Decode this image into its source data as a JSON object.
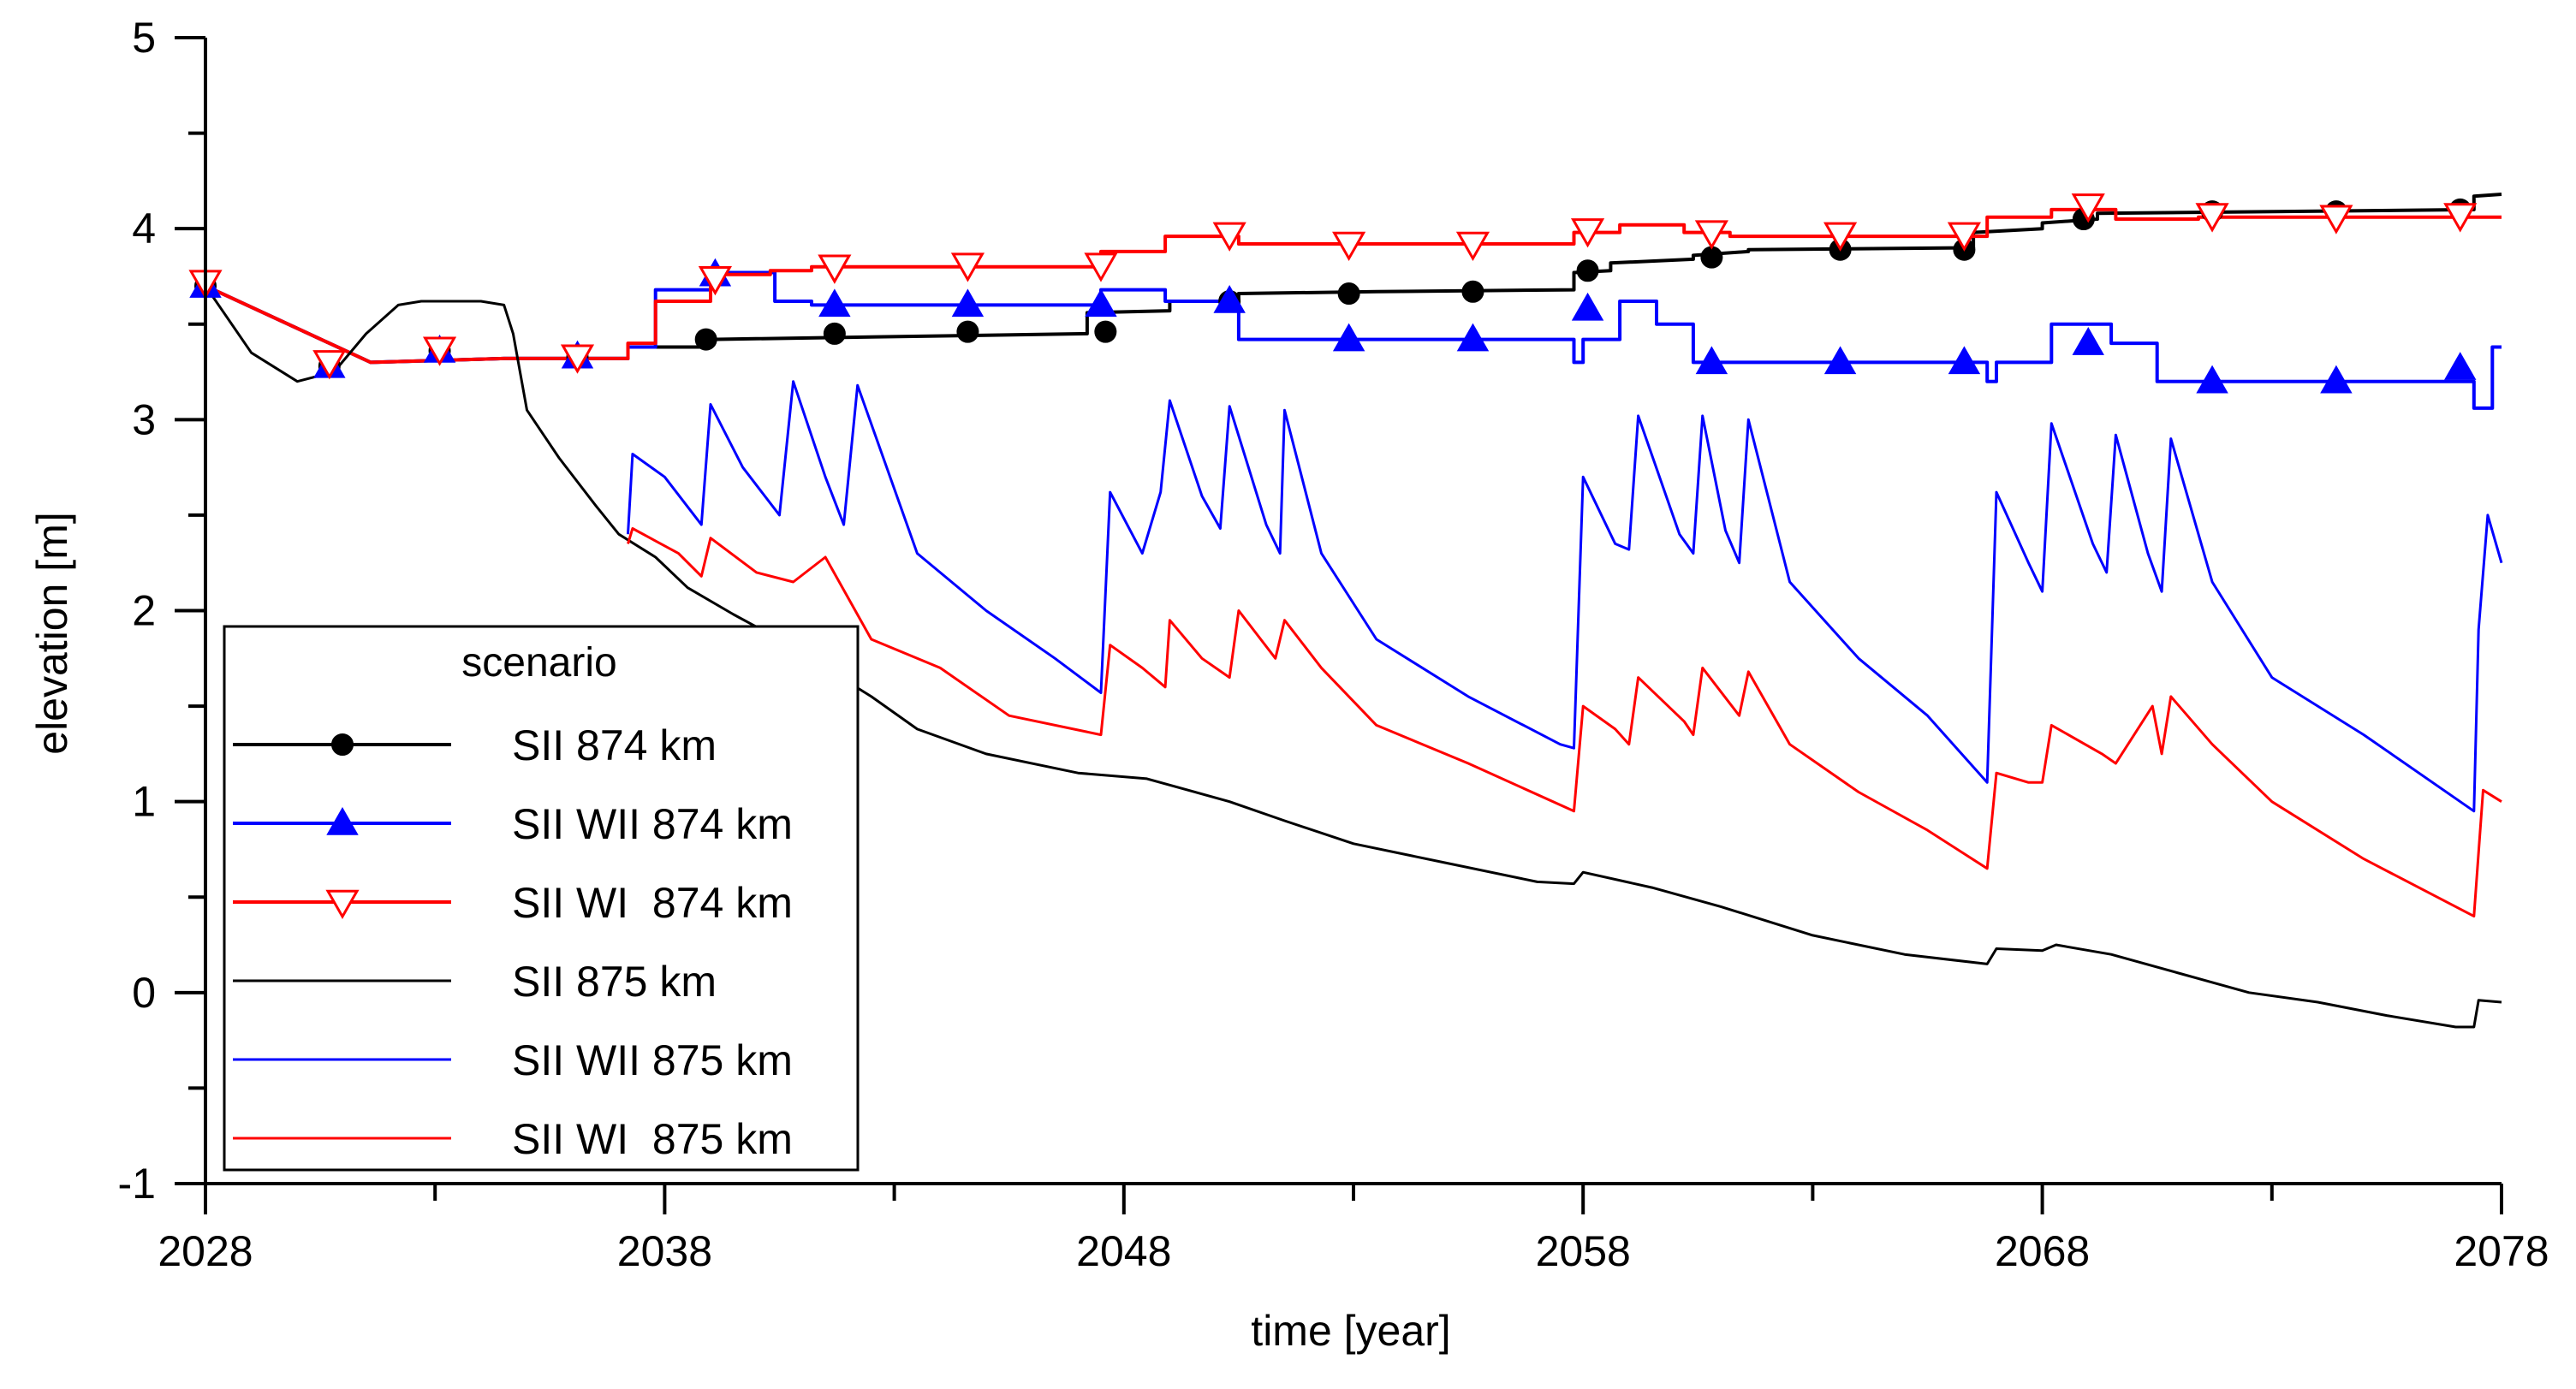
{
  "chart_data": {
    "type": "line",
    "title": "",
    "xlabel": "time [year]",
    "ylabel": "elevation [m]",
    "xlim": [
      2028,
      2078
    ],
    "ylim": [
      -1,
      5
    ],
    "xticks": [
      2028,
      2038,
      2048,
      2058,
      2068,
      2078
    ],
    "yticks": [
      -1,
      0,
      1,
      2,
      3,
      4,
      5
    ],
    "grid": false,
    "legend": {
      "title": "scenario",
      "position": "bottom-left"
    },
    "series": [
      {
        "name": "SII 874 km",
        "color": "#000000",
        "marker": "circle",
        "x": [
          2028,
          2031.6,
          2034.5,
          2034.5,
          2037.2,
          2037.2,
          2039,
          2039,
          2047.2,
          2047.2,
          2049,
          2049,
          2050.5,
          2050.5,
          2053.5,
          2053.5,
          2057.8,
          2057.8,
          2058.6,
          2058.6,
          2060.4,
          2060.4,
          2061.6,
          2061.6,
          2066.5,
          2066.5,
          2068,
          2068,
          2069.2,
          2069.2,
          2077.4,
          2077.4,
          2078
        ],
        "y": [
          3.7,
          3.3,
          3.32,
          3.32,
          3.32,
          3.38,
          3.38,
          3.42,
          3.45,
          3.56,
          3.57,
          3.62,
          3.62,
          3.66,
          3.67,
          3.67,
          3.68,
          3.77,
          3.78,
          3.82,
          3.84,
          3.86,
          3.88,
          3.89,
          3.9,
          3.98,
          4.0,
          4.03,
          4.05,
          4.08,
          4.1,
          4.17,
          4.18
        ],
        "markers_x": [
          2028,
          2030.7,
          2033.1,
          2036.1,
          2038.9,
          2041.7,
          2044.6,
          2047.6,
          2050.3,
          2052.9,
          2055.6,
          2058.1,
          2060.8,
          2063.6,
          2066.3,
          2068.9,
          2071.7,
          2074.4,
          2077.1
        ],
        "markers_y": [
          3.7,
          3.28,
          3.36,
          3.33,
          3.42,
          3.45,
          3.46,
          3.46,
          3.62,
          3.66,
          3.67,
          3.78,
          3.85,
          3.89,
          3.89,
          4.05,
          4.09,
          4.09,
          4.1
        ]
      },
      {
        "name": "SII WII 874 km",
        "color": "#0000ff",
        "marker": "triangle-up",
        "x": [
          2028,
          2031.6,
          2034.5,
          2037.2,
          2037.2,
          2037.8,
          2037.8,
          2039,
          2039,
          2040.4,
          2040.4,
          2041.2,
          2041.2,
          2047.5,
          2047.5,
          2048.9,
          2048.9,
          2050.5,
          2050.5,
          2057.8,
          2057.8,
          2058,
          2058,
          2058.8,
          2058.8,
          2059.6,
          2059.6,
          2060.4,
          2060.4,
          2061.2,
          2061.2,
          2066.8,
          2066.8,
          2067,
          2067,
          2068.2,
          2068.2,
          2069.5,
          2069.5,
          2070.5,
          2070.5,
          2077.4,
          2077.4,
          2077.8,
          2077.8,
          2078
        ],
        "y": [
          3.7,
          3.3,
          3.32,
          3.32,
          3.38,
          3.38,
          3.68,
          3.68,
          3.77,
          3.77,
          3.62,
          3.62,
          3.6,
          3.6,
          3.68,
          3.68,
          3.62,
          3.62,
          3.42,
          3.42,
          3.3,
          3.3,
          3.42,
          3.42,
          3.62,
          3.62,
          3.5,
          3.5,
          3.3,
          3.3,
          3.3,
          3.3,
          3.2,
          3.2,
          3.3,
          3.3,
          3.5,
          3.5,
          3.4,
          3.4,
          3.2,
          3.2,
          3.06,
          3.06,
          3.38,
          3.38
        ],
        "markers_x": [
          2028,
          2030.7,
          2033.1,
          2036.1,
          2039.1,
          2041.7,
          2044.6,
          2047.5,
          2050.3,
          2052.9,
          2055.6,
          2058.1,
          2060.8,
          2063.6,
          2066.3,
          2069,
          2071.7,
          2074.4,
          2077.1
        ],
        "markers_y": [
          3.7,
          3.28,
          3.36,
          3.33,
          3.76,
          3.6,
          3.6,
          3.6,
          3.62,
          3.42,
          3.42,
          3.58,
          3.3,
          3.3,
          3.3,
          3.4,
          3.2,
          3.2,
          3.27
        ]
      },
      {
        "name": "SII WI  874 km",
        "color": "#ff0000",
        "marker": "triangle-down-open",
        "x": [
          2028,
          2031.6,
          2034.5,
          2037.2,
          2037.2,
          2037.8,
          2037.8,
          2039,
          2039,
          2040.3,
          2040.3,
          2041.2,
          2041.2,
          2047.5,
          2047.5,
          2048.9,
          2048.9,
          2050.5,
          2050.5,
          2051,
          2051,
          2057.8,
          2057.8,
          2058.8,
          2058.8,
          2060.2,
          2060.2,
          2061.2,
          2061.2,
          2066.8,
          2066.8,
          2068.2,
          2068.2,
          2069.6,
          2069.6,
          2071.4,
          2071.4,
          2078
        ],
        "y": [
          3.7,
          3.3,
          3.32,
          3.32,
          3.4,
          3.4,
          3.62,
          3.62,
          3.76,
          3.76,
          3.78,
          3.78,
          3.8,
          3.8,
          3.88,
          3.88,
          3.96,
          3.96,
          3.92,
          3.92,
          3.92,
          3.92,
          3.98,
          3.98,
          4.02,
          4.02,
          3.98,
          3.98,
          3.96,
          3.96,
          4.06,
          4.06,
          4.1,
          4.1,
          4.05,
          4.05,
          4.06,
          4.06
        ],
        "markers_x": [
          2028,
          2030.7,
          2033.1,
          2036.1,
          2039.1,
          2041.7,
          2044.6,
          2047.5,
          2050.3,
          2052.9,
          2055.6,
          2058.1,
          2060.8,
          2063.6,
          2066.3,
          2069,
          2071.7,
          2074.4,
          2077.1
        ],
        "markers_y": [
          3.72,
          3.3,
          3.37,
          3.33,
          3.74,
          3.8,
          3.81,
          3.81,
          3.97,
          3.92,
          3.92,
          3.99,
          3.98,
          3.97,
          3.97,
          4.12,
          4.07,
          4.06,
          4.07
        ]
      },
      {
        "name": "SII 875 km",
        "color": "#000000",
        "marker": "none",
        "x": [
          2028,
          2029,
          2030,
          2030.8,
          2031.5,
          2032.2,
          2032.7,
          2033.3,
          2034,
          2034.5,
          2034.7,
          2035,
          2035.7,
          2036.5,
          2037,
          2037.8,
          2038.5,
          2039.5,
          2040.5,
          2041.5,
          2042.5,
          2043.5,
          2045,
          2047,
          2048.5,
          2050.3,
          2051.5,
          2053,
          2055,
          2057,
          2057.8,
          2058,
          2059.5,
          2061,
          2063,
          2065,
          2066.8,
          2067,
          2068,
          2068.3,
          2069.5,
          2071,
          2072.5,
          2074,
          2075.5,
          2077,
          2077.4,
          2077.5,
          2078
        ],
        "y": [
          3.7,
          3.35,
          3.2,
          3.25,
          3.45,
          3.6,
          3.62,
          3.62,
          3.62,
          3.6,
          3.45,
          3.05,
          2.8,
          2.55,
          2.4,
          2.28,
          2.12,
          1.98,
          1.85,
          1.7,
          1.55,
          1.38,
          1.25,
          1.15,
          1.12,
          1.0,
          0.9,
          0.78,
          0.68,
          0.58,
          0.57,
          0.63,
          0.55,
          0.45,
          0.3,
          0.2,
          0.15,
          0.23,
          0.22,
          0.25,
          0.2,
          0.1,
          0.0,
          -0.05,
          -0.12,
          -0.18,
          -0.18,
          -0.04,
          -0.05
        ]
      },
      {
        "name": "SII WII 875 km",
        "color": "#0000ff",
        "marker": "none",
        "x": [
          2037.2,
          2037.3,
          2038,
          2038.8,
          2039,
          2039.7,
          2040.5,
          2040.8,
          2041.5,
          2041.9,
          2042.2,
          2043.5,
          2045,
          2046.5,
          2047.5,
          2047.7,
          2048.4,
          2048.8,
          2049,
          2049.7,
          2050.1,
          2050.3,
          2051.1,
          2051.4,
          2051.5,
          2052.3,
          2053.5,
          2055.5,
          2057.5,
          2057.8,
          2058,
          2058.7,
          2059,
          2059.2,
          2060.1,
          2060.4,
          2060.6,
          2061.1,
          2061.4,
          2061.6,
          2062.5,
          2064,
          2065.5,
          2066.8,
          2067,
          2067.7,
          2068,
          2068.2,
          2069.1,
          2069.4,
          2069.6,
          2070.3,
          2070.6,
          2070.8,
          2071.7,
          2073,
          2075,
          2077.4,
          2077.5,
          2077.7,
          2078
        ],
        "y": [
          2.4,
          2.82,
          2.7,
          2.45,
          3.08,
          2.75,
          2.5,
          3.2,
          2.7,
          2.45,
          3.18,
          2.3,
          2.0,
          1.75,
          1.57,
          2.62,
          2.3,
          2.62,
          3.1,
          2.6,
          2.43,
          3.07,
          2.45,
          2.3,
          3.05,
          2.3,
          1.85,
          1.55,
          1.3,
          1.28,
          2.7,
          2.35,
          2.32,
          3.02,
          2.4,
          2.3,
          3.02,
          2.42,
          2.25,
          3.0,
          2.15,
          1.75,
          1.45,
          1.1,
          2.62,
          2.25,
          2.1,
          2.98,
          2.35,
          2.2,
          2.92,
          2.3,
          2.1,
          2.9,
          2.15,
          1.65,
          1.35,
          0.95,
          1.9,
          2.5,
          2.25
        ]
      },
      {
        "name": "SII WI  875 km",
        "color": "#ff0000",
        "marker": "none",
        "x": [
          2037.2,
          2037.3,
          2038.3,
          2038.8,
          2039,
          2040,
          2040.8,
          2041.5,
          2042.5,
          2044,
          2045.5,
          2047.5,
          2047.7,
          2048.4,
          2048.9,
          2049,
          2049.7,
          2050.3,
          2050.5,
          2051.3,
          2051.5,
          2052.3,
          2053.5,
          2055.5,
          2057.8,
          2058,
          2058.7,
          2059,
          2059.2,
          2060.2,
          2060.4,
          2060.6,
          2061.4,
          2061.6,
          2062.5,
          2064,
          2065.5,
          2066.8,
          2067,
          2067.7,
          2068,
          2068.2,
          2069.3,
          2069.6,
          2070.4,
          2070.6,
          2070.8,
          2071.7,
          2073,
          2075,
          2077.4,
          2077.6,
          2078
        ],
        "y": [
          2.35,
          2.43,
          2.3,
          2.18,
          2.38,
          2.2,
          2.15,
          2.28,
          1.85,
          1.7,
          1.45,
          1.35,
          1.82,
          1.7,
          1.6,
          1.95,
          1.75,
          1.65,
          2.0,
          1.75,
          1.95,
          1.7,
          1.4,
          1.2,
          0.95,
          1.5,
          1.38,
          1.3,
          1.65,
          1.42,
          1.35,
          1.7,
          1.45,
          1.68,
          1.3,
          1.05,
          0.85,
          0.65,
          1.15,
          1.1,
          1.1,
          1.4,
          1.25,
          1.2,
          1.5,
          1.25,
          1.55,
          1.3,
          1.0,
          0.7,
          0.4,
          1.06,
          1.0
        ]
      }
    ]
  }
}
